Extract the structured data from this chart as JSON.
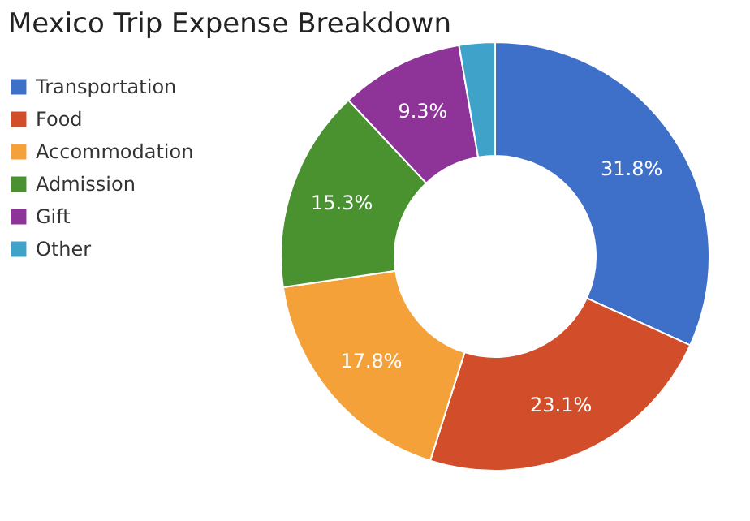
{
  "chart_data": {
    "type": "donut",
    "title": "Mexico Trip Expense Breakdown",
    "categories": [
      "Transportation",
      "Food",
      "Accommodation",
      "Admission",
      "Gift",
      "Other"
    ],
    "values": [
      31.8,
      23.1,
      17.8,
      15.3,
      9.3,
      2.7
    ],
    "colors": [
      "#3f70c9",
      "#d24e2a",
      "#f4a13a",
      "#4a9230",
      "#8e3499",
      "#3fa2c9"
    ],
    "value_labels": [
      "31.8%",
      "23.1%",
      "17.8%",
      "15.3%",
      "9.3%",
      null
    ],
    "legend": "top left"
  }
}
